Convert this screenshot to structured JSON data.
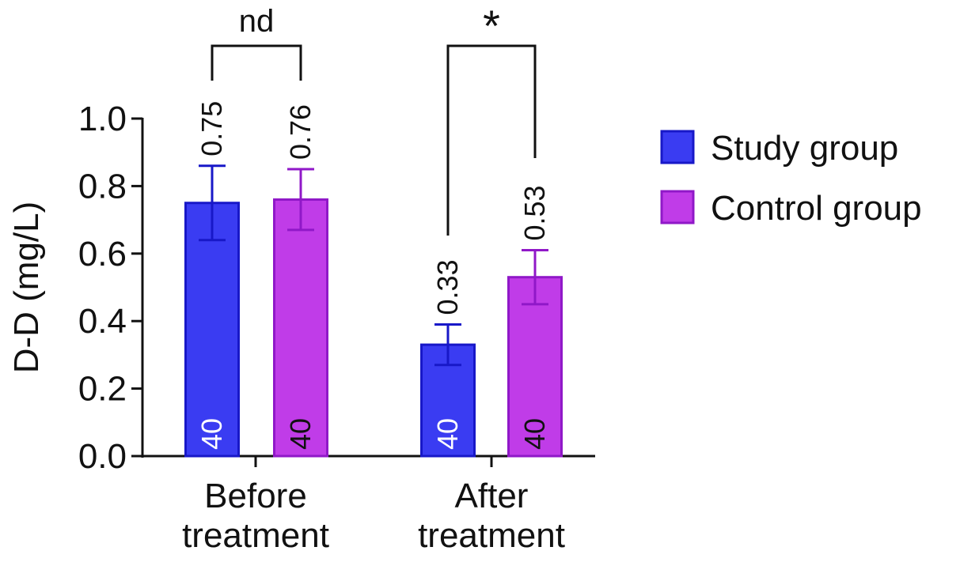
{
  "chart_data": {
    "type": "bar",
    "ylabel": "D-D (mg/L)",
    "ylim": [
      0,
      1.0
    ],
    "yticks": [
      "0.0",
      "0.2",
      "0.4",
      "0.6",
      "0.8",
      "1.0"
    ],
    "categories": [
      [
        "Before",
        "treatment"
      ],
      [
        "After",
        "treatment"
      ]
    ],
    "series": [
      {
        "name": "Study group",
        "color": "#3a3cf2",
        "edge": "#1818c8",
        "values": [
          0.75,
          0.33
        ],
        "errors": [
          0.11,
          0.06
        ],
        "value_labels": [
          "0.75",
          "0.33"
        ],
        "n_labels": [
          "40",
          "40"
        ]
      },
      {
        "name": "Control group",
        "color": "#c03ce8",
        "edge": "#9018c8",
        "values": [
          0.76,
          0.53
        ],
        "errors": [
          0.09,
          0.08
        ],
        "value_labels": [
          "0.76",
          "0.53"
        ],
        "n_labels": [
          "40",
          "40"
        ]
      }
    ],
    "significance": [
      {
        "category_index": 0,
        "label": "nd"
      },
      {
        "category_index": 1,
        "label": "*"
      }
    ],
    "legend_position": "right"
  }
}
